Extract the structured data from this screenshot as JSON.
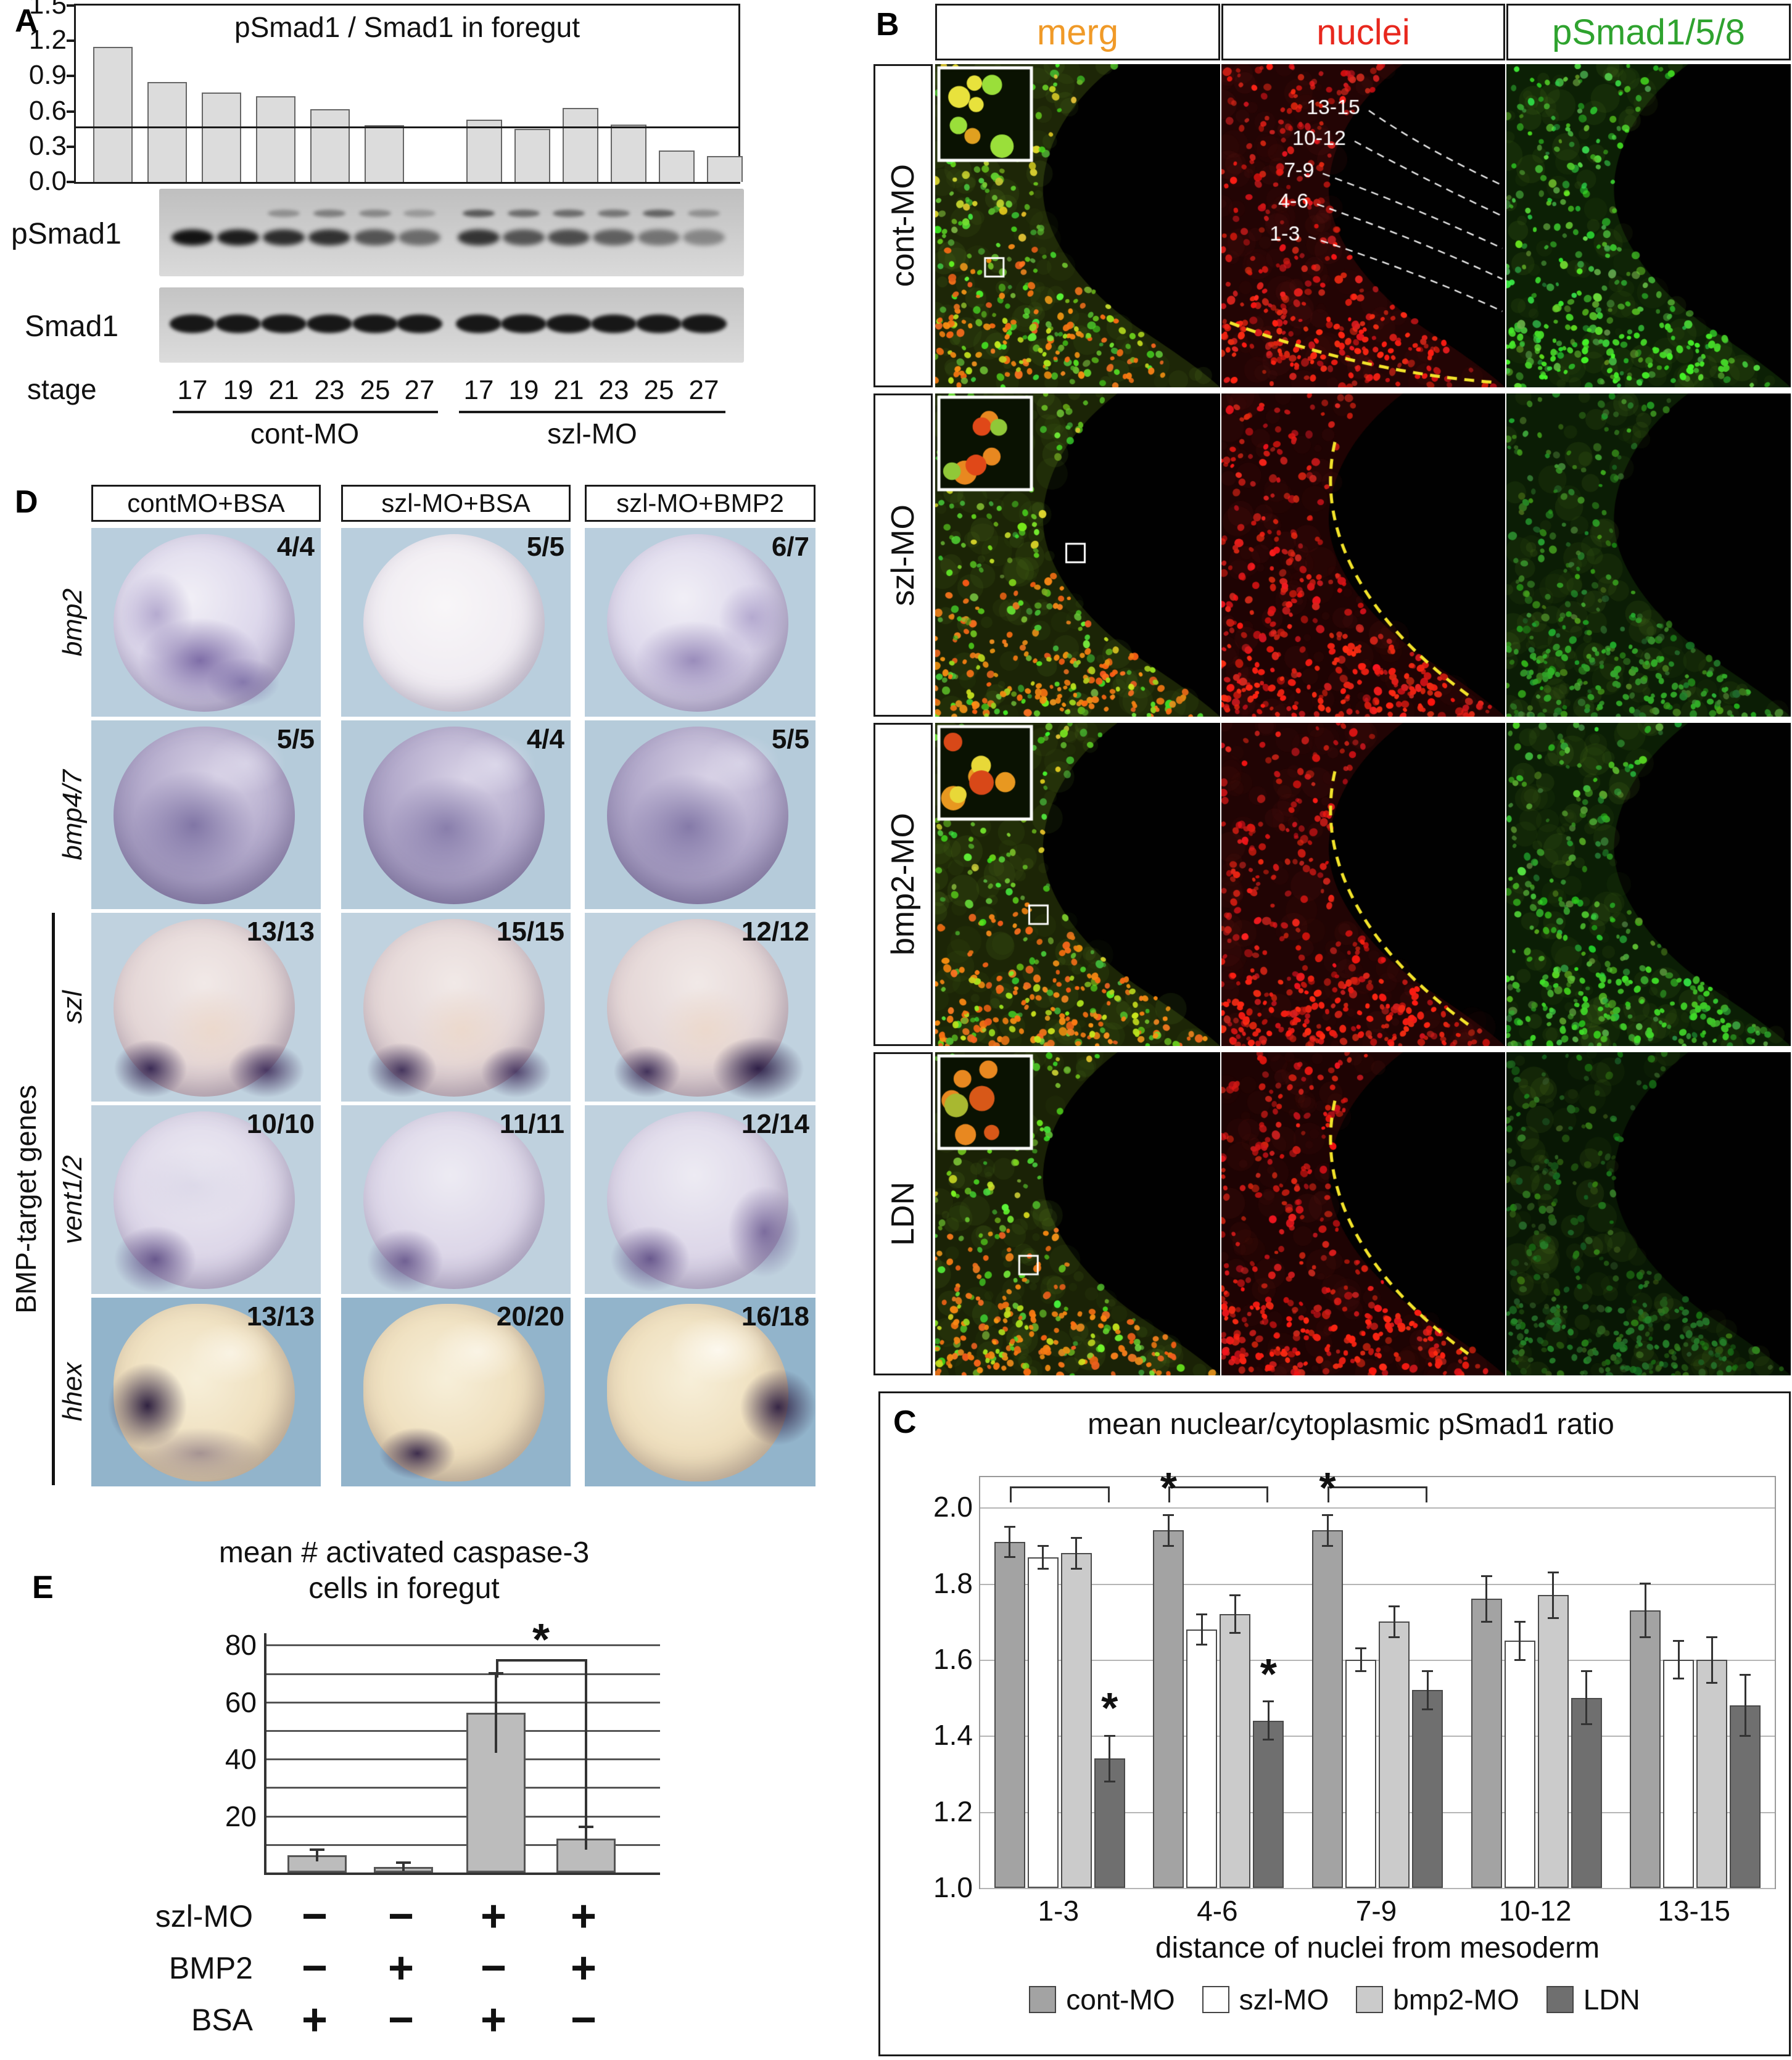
{
  "panels": {
    "A": {
      "label": "A",
      "chart_title": "pSmad1 / Smad1  in foregut",
      "blot_labels": [
        "pSmad1",
        "Smad1"
      ],
      "stage_label": "stage",
      "group_labels": [
        "cont-MO",
        "szl-MO"
      ]
    },
    "B": {
      "label": "B",
      "column_headers": [
        {
          "label": "merg",
          "color": "#f09a28"
        },
        {
          "label": "nuclei",
          "color": "#e8281e"
        },
        {
          "label": "pSmad1/5/8",
          "color": "#2fa32f"
        }
      ],
      "row_labels": [
        "cont-MO",
        "szl-MO",
        "bmp2-MO",
        "LDN"
      ],
      "zone_labels": [
        "13-15",
        "10-12",
        "7-9",
        "4-6",
        "1-3"
      ]
    },
    "C": {
      "label": "C",
      "significance_marker": "*"
    },
    "D": {
      "label": "D",
      "column_headers": [
        "contMO+BSA",
        "szl-MO+BSA",
        "szl-MO+BMP2"
      ],
      "side_label": "BMP-target genes",
      "rows": [
        {
          "gene": "bmp2",
          "counts": [
            "4/4",
            "5/5",
            "6/7"
          ]
        },
        {
          "gene": "bmp4/7",
          "counts": [
            "5/5",
            "4/4",
            "5/5"
          ]
        },
        {
          "gene": "szl",
          "counts": [
            "13/13",
            "15/15",
            "12/12"
          ]
        },
        {
          "gene": "vent1/2",
          "counts": [
            "10/10",
            "11/11",
            "12/14"
          ]
        },
        {
          "gene": "hhex",
          "counts": [
            "13/13",
            "20/20",
            "16/18"
          ]
        }
      ]
    },
    "E": {
      "label": "E",
      "title_line1": "mean # activated caspase-3",
      "title_line2": "cells in foregut",
      "significance_marker": "*"
    }
  },
  "chart_data": [
    {
      "id": "panelA",
      "type": "bar",
      "title": "pSmad1 / Smad1  in foregut",
      "group_labels": [
        "cont-MO",
        "szl-MO"
      ],
      "categories": [
        "17",
        "19",
        "21",
        "23",
        "25",
        "27",
        "17",
        "19",
        "21",
        "23",
        "25",
        "27"
      ],
      "values": [
        1.15,
        0.85,
        0.76,
        0.73,
        0.62,
        0.48,
        0.53,
        0.45,
        0.63,
        0.49,
        0.27,
        0.22
      ],
      "ylim": [
        0,
        1.5
      ],
      "yticks": [
        "1.5",
        "1.2",
        "0.9",
        "0.6",
        "0.3",
        "0.0"
      ],
      "reference_line": 0.47,
      "bar_color": "#dcdcdc"
    },
    {
      "id": "panelC",
      "type": "bar",
      "title": "mean nuclear/cytoplasmic pSmad1 ratio",
      "categories": [
        "1-3",
        "4-6",
        "7-9",
        "10-12",
        "13-15"
      ],
      "series": [
        {
          "name": "cont-MO",
          "color": "#a3a3a3",
          "values": [
            1.91,
            1.94,
            1.94,
            1.76,
            1.73
          ],
          "errors": [
            0.04,
            0.04,
            0.04,
            0.06,
            0.07
          ]
        },
        {
          "name": "szl-MO",
          "color": "#ffffff",
          "values": [
            1.87,
            1.68,
            1.6,
            1.65,
            1.6
          ],
          "errors": [
            0.03,
            0.04,
            0.03,
            0.05,
            0.05
          ]
        },
        {
          "name": "bmp2-MO",
          "color": "#cbcbcb",
          "values": [
            1.88,
            1.72,
            1.7,
            1.77,
            1.6
          ],
          "errors": [
            0.04,
            0.05,
            0.04,
            0.06,
            0.06
          ]
        },
        {
          "name": "LDN",
          "color": "#6f6f6f",
          "values": [
            1.34,
            1.44,
            1.52,
            1.5,
            1.48
          ],
          "errors": [
            0.06,
            0.05,
            0.05,
            0.07,
            0.08
          ]
        }
      ],
      "xlabel": "distance of nuclei from mesoderm",
      "ylim": [
        1.0,
        2.0
      ],
      "yticks": [
        "2.0",
        "1.8",
        "1.6",
        "1.4",
        "1.2",
        "1.0"
      ],
      "legend_position": "bottom",
      "grid": true,
      "significance": {
        "bracket_groups": [
          0,
          1,
          2
        ],
        "stars": [
          {
            "group": 0,
            "series": 3
          },
          {
            "group": 1,
            "series": 0
          },
          {
            "group": 1,
            "series": 3
          },
          {
            "group": 2,
            "series": 0
          }
        ]
      }
    },
    {
      "id": "panelE",
      "type": "bar",
      "title": "mean # activated caspase-3 cells in foregut",
      "values": [
        6,
        2,
        56,
        12
      ],
      "errors": [
        2,
        1.5,
        14,
        4
      ],
      "ylim": [
        0,
        80
      ],
      "yticks": [
        "80",
        "60",
        "40",
        "20"
      ],
      "bar_color": "#bcbcbc",
      "conditions": [
        {
          "label": "szl-MO",
          "signs": [
            "−",
            "−",
            "+",
            "+"
          ]
        },
        {
          "label": "BMP2",
          "signs": [
            "−",
            "+",
            "−",
            "+"
          ]
        },
        {
          "label": "BSA",
          "signs": [
            "+",
            "−",
            "+",
            "−"
          ]
        }
      ],
      "significance": {
        "bracket": [
          2,
          3
        ]
      }
    }
  ]
}
